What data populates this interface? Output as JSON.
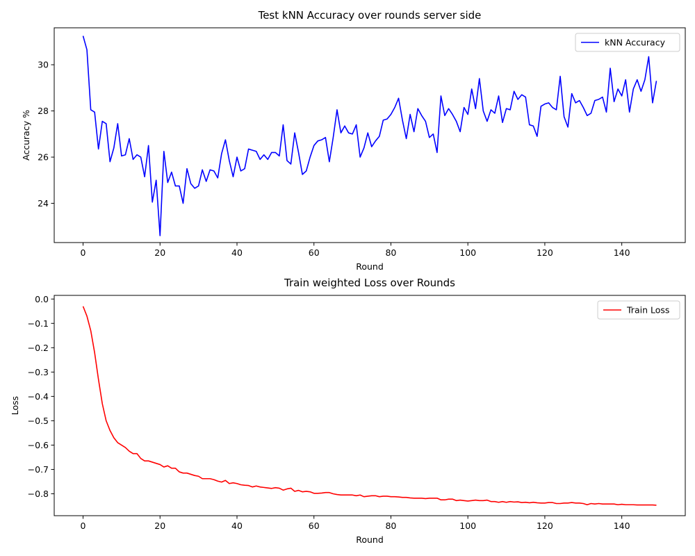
{
  "chart_data": [
    {
      "type": "line",
      "title": "Test kNN Accuracy over rounds server side",
      "xlabel": "Round",
      "ylabel": "Accuracy %",
      "xlim": [
        -7.5,
        156.5
      ],
      "ylim": [
        22.3,
        31.6
      ],
      "xticks": [
        0,
        20,
        40,
        60,
        80,
        100,
        120,
        140
      ],
      "yticks": [
        24,
        26,
        28,
        30
      ],
      "grid": false,
      "legend": "top-right",
      "series": [
        {
          "name": "kNN Accuracy",
          "color": "#0000ff",
          "values": [
            31.25,
            30.65,
            28.05,
            27.95,
            26.35,
            27.55,
            27.45,
            25.8,
            26.4,
            27.45,
            26.05,
            26.1,
            26.8,
            25.9,
            26.1,
            26.0,
            25.15,
            26.5,
            24.05,
            25.0,
            22.6,
            26.25,
            24.9,
            25.35,
            24.75,
            24.75,
            24.0,
            25.5,
            24.85,
            24.65,
            24.75,
            25.45,
            24.95,
            25.45,
            25.4,
            25.1,
            26.15,
            26.75,
            25.85,
            25.15,
            26.0,
            25.4,
            25.5,
            26.35,
            26.3,
            26.25,
            25.9,
            26.1,
            25.9,
            26.2,
            26.2,
            26.05,
            27.4,
            25.85,
            25.7,
            27.05,
            26.2,
            25.25,
            25.4,
            26.0,
            26.5,
            26.7,
            26.75,
            26.85,
            25.8,
            26.85,
            28.05,
            27.05,
            27.35,
            27.05,
            27.0,
            27.4,
            26.0,
            26.4,
            27.05,
            26.45,
            26.7,
            26.9,
            27.6,
            27.65,
            27.85,
            28.15,
            28.55,
            27.6,
            26.8,
            27.85,
            27.1,
            28.1,
            27.8,
            27.55,
            26.85,
            27.0,
            26.2,
            28.65,
            27.8,
            28.1,
            27.85,
            27.55,
            27.1,
            28.15,
            27.85,
            28.95,
            28.1,
            29.4,
            28.0,
            27.55,
            28.05,
            27.9,
            28.65,
            27.5,
            28.1,
            28.05,
            28.85,
            28.5,
            28.7,
            28.6,
            27.4,
            27.35,
            26.9,
            28.2,
            28.3,
            28.35,
            28.15,
            28.05,
            29.5,
            27.75,
            27.3,
            28.75,
            28.35,
            28.45,
            28.15,
            27.8,
            27.9,
            28.45,
            28.5,
            28.6,
            27.95,
            29.85,
            28.4,
            28.95,
            28.65,
            29.35,
            27.95,
            28.95,
            29.35,
            28.85,
            29.35,
            30.35,
            28.35,
            29.3
          ]
        }
      ]
    },
    {
      "type": "line",
      "title": "Train weighted Loss over Rounds",
      "xlabel": "Round",
      "ylabel": "Loss",
      "xlim": [
        -7.5,
        156.5
      ],
      "ylim": [
        -0.89,
        0.015
      ],
      "xticks": [
        0,
        20,
        40,
        60,
        80,
        100,
        120,
        140
      ],
      "yticks": [
        -0.8,
        -0.7,
        -0.6,
        -0.5,
        -0.4,
        -0.3,
        -0.2,
        -0.1,
        0.0
      ],
      "ytick_labels": [
        "−0.8",
        "−0.7",
        "−0.6",
        "−0.5",
        "−0.4",
        "−0.3",
        "−0.2",
        "−0.1",
        "0.0"
      ],
      "grid": false,
      "legend": "top-right",
      "series": [
        {
          "name": "Train Loss",
          "color": "#ff0000",
          "values": [
            -0.03,
            -0.07,
            -0.13,
            -0.22,
            -0.33,
            -0.43,
            -0.5,
            -0.54,
            -0.57,
            -0.59,
            -0.6,
            -0.61,
            -0.625,
            -0.635,
            -0.635,
            -0.655,
            -0.665,
            -0.665,
            -0.67,
            -0.675,
            -0.68,
            -0.69,
            -0.685,
            -0.695,
            -0.695,
            -0.71,
            -0.715,
            -0.715,
            -0.72,
            -0.725,
            -0.728,
            -0.738,
            -0.738,
            -0.738,
            -0.742,
            -0.748,
            -0.752,
            -0.745,
            -0.758,
            -0.755,
            -0.758,
            -0.763,
            -0.765,
            -0.766,
            -0.772,
            -0.768,
            -0.772,
            -0.774,
            -0.776,
            -0.778,
            -0.775,
            -0.777,
            -0.785,
            -0.78,
            -0.777,
            -0.79,
            -0.786,
            -0.792,
            -0.79,
            -0.792,
            -0.798,
            -0.798,
            -0.797,
            -0.795,
            -0.795,
            -0.8,
            -0.803,
            -0.805,
            -0.805,
            -0.805,
            -0.805,
            -0.808,
            -0.805,
            -0.812,
            -0.81,
            -0.808,
            -0.808,
            -0.812,
            -0.81,
            -0.81,
            -0.812,
            -0.812,
            -0.813,
            -0.815,
            -0.815,
            -0.817,
            -0.818,
            -0.818,
            -0.818,
            -0.82,
            -0.818,
            -0.818,
            -0.818,
            -0.825,
            -0.825,
            -0.822,
            -0.822,
            -0.828,
            -0.826,
            -0.828,
            -0.83,
            -0.828,
            -0.826,
            -0.828,
            -0.828,
            -0.826,
            -0.832,
            -0.832,
            -0.835,
            -0.832,
            -0.835,
            -0.832,
            -0.834,
            -0.833,
            -0.836,
            -0.835,
            -0.837,
            -0.835,
            -0.837,
            -0.838,
            -0.838,
            -0.836,
            -0.836,
            -0.84,
            -0.84,
            -0.838,
            -0.838,
            -0.836,
            -0.838,
            -0.838,
            -0.84,
            -0.845,
            -0.84,
            -0.842,
            -0.84,
            -0.842,
            -0.842,
            -0.842,
            -0.842,
            -0.845,
            -0.843,
            -0.845,
            -0.845,
            -0.845,
            -0.846,
            -0.846,
            -0.846,
            -0.846,
            -0.846,
            -0.847
          ]
        }
      ]
    }
  ]
}
